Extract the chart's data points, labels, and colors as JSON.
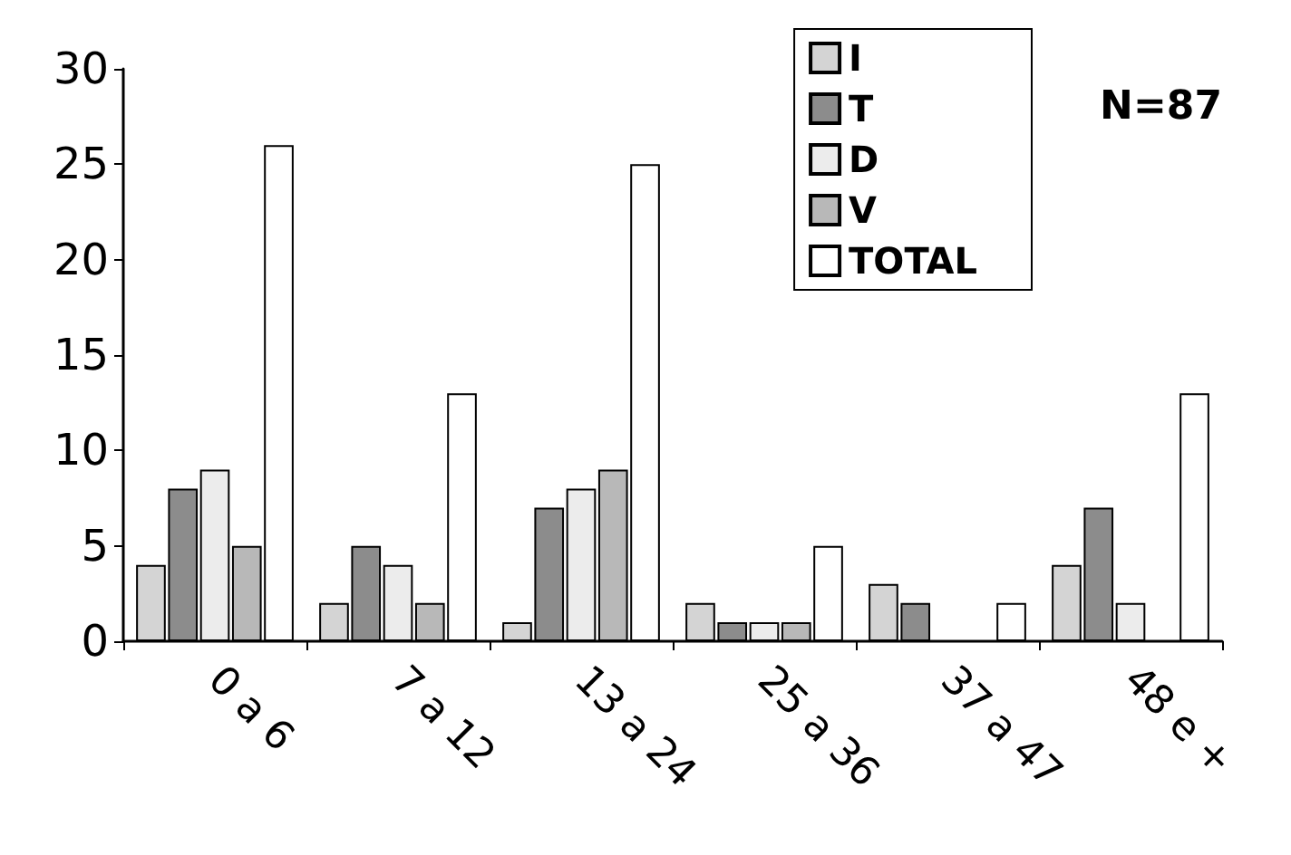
{
  "chart_data": {
    "type": "bar",
    "categories": [
      "0 a 6",
      "7 a 12",
      "13 a 24",
      "25 a 36",
      "37 a 47",
      "48 e +"
    ],
    "series": [
      {
        "name": "I",
        "color": "#d4d4d4",
        "values": [
          4,
          2,
          1,
          2,
          3,
          4
        ]
      },
      {
        "name": "T",
        "color": "#8c8c8c",
        "values": [
          8,
          5,
          7,
          1,
          2,
          7
        ]
      },
      {
        "name": "D",
        "color": "#ececec",
        "values": [
          9,
          4,
          8,
          1,
          null,
          2
        ]
      },
      {
        "name": "V",
        "color": "#b8b8b8",
        "values": [
          5,
          2,
          9,
          1,
          null,
          null
        ]
      },
      {
        "name": "TOTAL",
        "color": "#ffffff",
        "values": [
          26,
          13,
          25,
          5,
          2,
          13
        ]
      }
    ],
    "ylim": [
      0,
      30
    ],
    "yticks": [
      0,
      5,
      10,
      15,
      20,
      25,
      30
    ],
    "grid": false,
    "legend": "top right",
    "annotations": [
      "N=87"
    ]
  }
}
